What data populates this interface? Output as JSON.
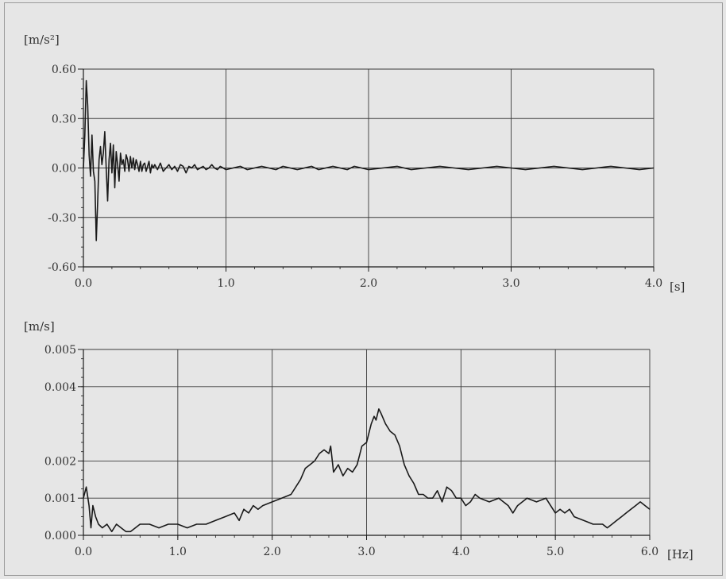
{
  "chart_data": [
    {
      "type": "line",
      "ylabel": "[m/s²]",
      "x_unit": "[s]",
      "xlim": [
        0,
        4
      ],
      "ylim": [
        -0.6,
        0.6
      ],
      "xticks": [
        0,
        1,
        2,
        3,
        4
      ],
      "xtick_labels": [
        "0.0",
        "1.0",
        "2.0",
        "3.0",
        "4.0"
      ],
      "yticks": [
        0.6,
        0.3,
        0,
        -0.3,
        -0.6
      ],
      "ytick_labels": [
        "0.60",
        "0.30",
        "0.00",
        "-0.30",
        "-0.60"
      ],
      "grid": true,
      "series": [
        {
          "color": "#1a1a1a",
          "x": [
            0.0,
            0.01,
            0.02,
            0.03,
            0.04,
            0.05,
            0.06,
            0.07,
            0.08,
            0.09,
            0.1,
            0.11,
            0.12,
            0.13,
            0.14,
            0.15,
            0.16,
            0.17,
            0.18,
            0.19,
            0.2,
            0.21,
            0.22,
            0.23,
            0.24,
            0.25,
            0.26,
            0.27,
            0.28,
            0.29,
            0.3,
            0.31,
            0.32,
            0.33,
            0.34,
            0.35,
            0.36,
            0.37,
            0.38,
            0.39,
            0.4,
            0.41,
            0.42,
            0.43,
            0.44,
            0.45,
            0.46,
            0.47,
            0.48,
            0.49,
            0.5,
            0.52,
            0.54,
            0.56,
            0.58,
            0.6,
            0.62,
            0.64,
            0.66,
            0.68,
            0.7,
            0.72,
            0.74,
            0.76,
            0.78,
            0.8,
            0.82,
            0.84,
            0.86,
            0.88,
            0.9,
            0.92,
            0.94,
            0.96,
            0.98,
            1.0,
            1.05,
            1.1,
            1.15,
            1.2,
            1.25,
            1.3,
            1.35,
            1.4,
            1.45,
            1.5,
            1.55,
            1.6,
            1.65,
            1.7,
            1.75,
            1.8,
            1.85,
            1.9,
            1.95,
            2.0,
            2.1,
            2.2,
            2.3,
            2.4,
            2.5,
            2.6,
            2.7,
            2.8,
            2.9,
            3.0,
            3.1,
            3.2,
            3.3,
            3.4,
            3.5,
            3.6,
            3.7,
            3.8,
            3.9,
            4.0
          ],
          "y": [
            0.0,
            0.2,
            0.53,
            0.38,
            0.08,
            -0.05,
            0.2,
            -0.02,
            -0.08,
            -0.44,
            -0.2,
            0.05,
            0.13,
            0.02,
            0.09,
            0.22,
            0.0,
            -0.2,
            0.05,
            0.15,
            -0.03,
            0.14,
            -0.12,
            0.1,
            0.02,
            -0.08,
            0.09,
            0.02,
            0.05,
            -0.02,
            0.08,
            0.05,
            -0.02,
            0.07,
            0.0,
            0.06,
            -0.01,
            0.05,
            0.02,
            -0.02,
            0.04,
            -0.02,
            0.02,
            0.03,
            -0.02,
            0.01,
            0.04,
            -0.03,
            0.02,
            0.0,
            0.02,
            -0.01,
            0.03,
            -0.02,
            0.0,
            0.02,
            -0.01,
            0.01,
            -0.02,
            0.02,
            0.01,
            -0.03,
            0.01,
            0.0,
            0.02,
            -0.01,
            0.0,
            0.01,
            -0.01,
            0.0,
            0.02,
            0.0,
            -0.01,
            0.01,
            0.0,
            -0.01,
            0.0,
            0.01,
            -0.01,
            0.0,
            0.01,
            0.0,
            -0.01,
            0.01,
            0.0,
            -0.01,
            0.0,
            0.01,
            -0.01,
            0.0,
            0.01,
            0.0,
            -0.01,
            0.01,
            0.0,
            -0.01,
            0.0,
            0.01,
            -0.01,
            0.0,
            0.01,
            0.0,
            -0.01,
            0.0,
            0.01,
            0.0,
            -0.01,
            0.0,
            0.01,
            0.0,
            -0.01,
            0.0,
            0.01,
            0.0,
            -0.01,
            0.0
          ]
        }
      ]
    },
    {
      "type": "line",
      "ylabel": "[m/s]",
      "x_unit": "[Hz]",
      "xlim": [
        0,
        6
      ],
      "ylim": [
        0,
        0.005
      ],
      "xticks": [
        0,
        1,
        2,
        3,
        4,
        5,
        6
      ],
      "xtick_labels": [
        "0.0",
        "1.0",
        "2.0",
        "3.0",
        "4.0",
        "5.0",
        "6.0"
      ],
      "yticks": [
        0.005,
        0.004,
        0.002,
        0.001,
        0.0
      ],
      "ytick_labels": [
        "0.005",
        "0.004",
        "0.002",
        "0.001",
        "0.000"
      ],
      "grid": true,
      "series": [
        {
          "color": "#1a1a1a",
          "x": [
            0.0,
            0.03,
            0.06,
            0.08,
            0.1,
            0.13,
            0.16,
            0.2,
            0.25,
            0.3,
            0.35,
            0.4,
            0.45,
            0.5,
            0.55,
            0.6,
            0.7,
            0.8,
            0.9,
            1.0,
            1.1,
            1.2,
            1.3,
            1.4,
            1.5,
            1.6,
            1.65,
            1.7,
            1.75,
            1.8,
            1.85,
            1.9,
            2.0,
            2.1,
            2.2,
            2.3,
            2.35,
            2.4,
            2.45,
            2.5,
            2.55,
            2.6,
            2.62,
            2.65,
            2.7,
            2.75,
            2.8,
            2.85,
            2.9,
            2.95,
            3.0,
            3.05,
            3.08,
            3.1,
            3.13,
            3.15,
            3.2,
            3.25,
            3.3,
            3.35,
            3.4,
            3.45,
            3.5,
            3.55,
            3.6,
            3.65,
            3.7,
            3.75,
            3.8,
            3.85,
            3.9,
            3.95,
            4.0,
            4.05,
            4.1,
            4.15,
            4.2,
            4.3,
            4.4,
            4.5,
            4.55,
            4.6,
            4.65,
            4.7,
            4.8,
            4.9,
            4.95,
            5.0,
            5.05,
            5.1,
            5.15,
            5.2,
            5.3,
            5.4,
            5.5,
            5.55,
            5.6,
            5.65,
            5.7,
            5.75,
            5.8,
            5.85,
            5.9,
            5.95,
            6.0
          ],
          "y": [
            0.001,
            0.0013,
            0.0008,
            0.0002,
            0.0008,
            0.0005,
            0.0003,
            0.0002,
            0.0003,
            0.0001,
            0.0003,
            0.0002,
            0.0001,
            0.0001,
            0.0002,
            0.0003,
            0.0003,
            0.0002,
            0.0003,
            0.0003,
            0.0002,
            0.0003,
            0.0003,
            0.0004,
            0.0005,
            0.0006,
            0.0004,
            0.0007,
            0.0006,
            0.0008,
            0.0007,
            0.0008,
            0.0009,
            0.001,
            0.0011,
            0.0015,
            0.0018,
            0.0019,
            0.002,
            0.0022,
            0.0023,
            0.0022,
            0.0024,
            0.0017,
            0.0019,
            0.0016,
            0.0018,
            0.0017,
            0.0019,
            0.0024,
            0.0025,
            0.003,
            0.0032,
            0.0031,
            0.0034,
            0.0033,
            0.003,
            0.0028,
            0.0027,
            0.0024,
            0.0019,
            0.0016,
            0.0014,
            0.0011,
            0.0011,
            0.001,
            0.001,
            0.0012,
            0.0009,
            0.0013,
            0.0012,
            0.001,
            0.001,
            0.0008,
            0.0009,
            0.0011,
            0.001,
            0.0009,
            0.001,
            0.0008,
            0.0006,
            0.0008,
            0.0009,
            0.001,
            0.0009,
            0.001,
            0.0008,
            0.0006,
            0.0007,
            0.0006,
            0.0007,
            0.0005,
            0.0004,
            0.0003,
            0.0003,
            0.0002,
            0.0003,
            0.0004,
            0.0005,
            0.0006,
            0.0007,
            0.0008,
            0.0009,
            0.0008,
            0.0007
          ]
        }
      ]
    }
  ]
}
